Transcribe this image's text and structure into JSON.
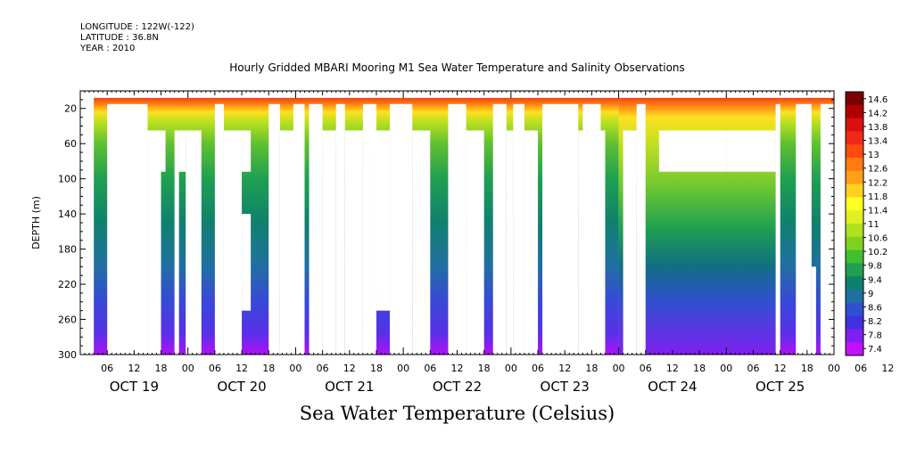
{
  "header": {
    "longitude": "LONGITUDE : 122W(-122)",
    "latitude": "LATITUDE : 36.8N",
    "year": "YEAR : 2010"
  },
  "chart_data": {
    "type": "heatmap",
    "title": "Hourly Gridded MBARI Mooring M1 Sea Water Temperature and Salinity Observations",
    "caption": "Sea Water Temperature (Celsius)",
    "ylabel": "DEPTH (m)",
    "ylim": [
      0,
      300
    ],
    "y_inverted": true,
    "y_ticks": [
      20,
      60,
      100,
      140,
      180,
      220,
      260,
      300
    ],
    "x_range_hours": [
      0,
      168
    ],
    "hour_ticks": [
      "06",
      "12",
      "18",
      "00",
      "06",
      "12",
      "18",
      "00",
      "06",
      "12",
      "18",
      "00",
      "06",
      "12",
      "18",
      "00",
      "06",
      "12",
      "18",
      "00",
      "06",
      "12",
      "18",
      "00",
      "06",
      "12",
      "18",
      "00",
      "06",
      "12",
      "18",
      "00"
    ],
    "day_labels": [
      "OCT 19",
      "OCT 20",
      "OCT 21",
      "OCT 22",
      "OCT 23",
      "OCT 24",
      "OCT 25"
    ],
    "colorbar": {
      "labels": [
        "14.6",
        "14.2",
        "13.8",
        "13.4",
        "13",
        "12.6",
        "12.2",
        "11.8",
        "11.4",
        "11",
        "10.6",
        "10.2",
        "9.8",
        "9.4",
        "9",
        "8.6",
        "8.2",
        "7.8",
        "7.4"
      ],
      "min": 7.2,
      "max": 14.8,
      "colors": [
        "#7b0000",
        "#b00000",
        "#d81010",
        "#f02818",
        "#ff4a10",
        "#ff7a10",
        "#ffa018",
        "#ffd020",
        "#ffff20",
        "#e0f020",
        "#b0e020",
        "#80d020",
        "#40c030",
        "#20a050",
        "#10806e",
        "#2070a0",
        "#3050d0",
        "#4030e0",
        "#8020f0",
        "#c010ff"
      ]
    },
    "temperature_profile": {
      "depths_m": [
        0,
        20,
        40,
        60,
        100,
        140,
        180,
        220,
        260,
        300
      ],
      "typical_celsius": [
        13.4,
        12.6,
        11.0,
        10.2,
        9.8,
        9.4,
        9.0,
        8.6,
        8.2,
        7.6
      ]
    }
  }
}
